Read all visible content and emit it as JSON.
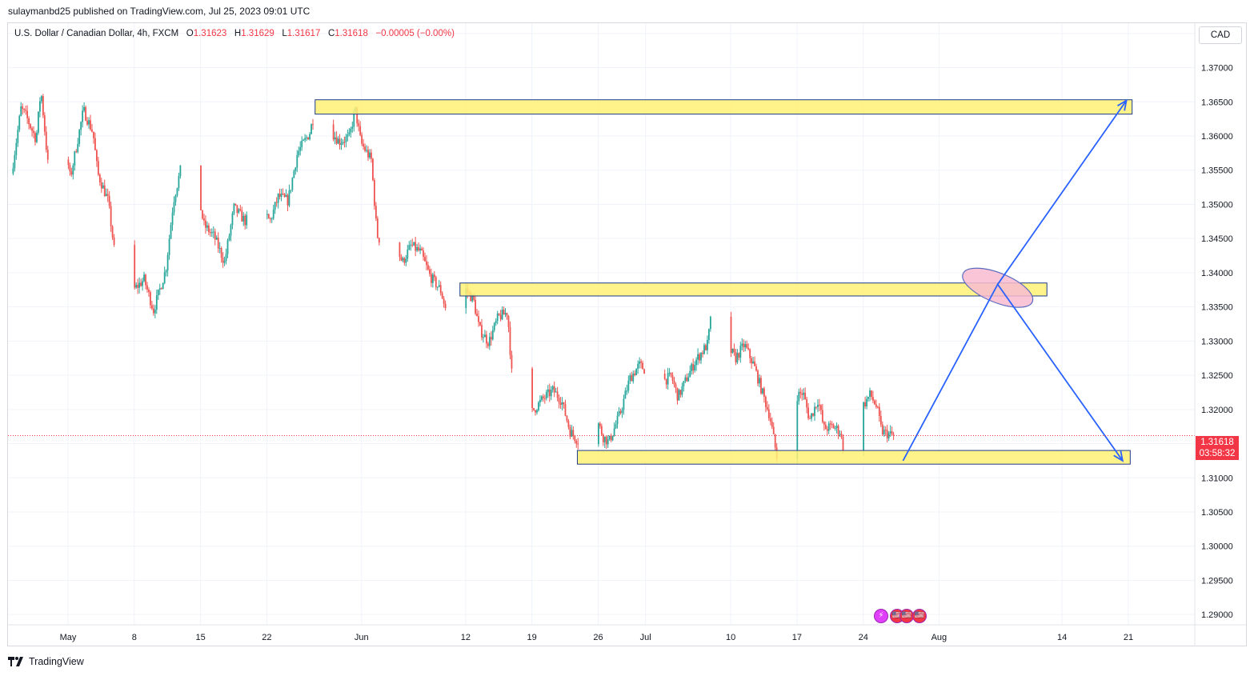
{
  "header": {
    "publisher_line": "sulaymanbd25 published on TradingView.com, Jul 25, 2023 09:01 UTC"
  },
  "legend": {
    "symbol": "U.S. Dollar / Canadian Dollar, 4h, FXCM",
    "open_label": "O",
    "open": "1.31623",
    "high_label": "H",
    "high": "1.31629",
    "low_label": "L",
    "low": "1.31617",
    "close_label": "C",
    "close": "1.31618",
    "change": "−0.00005 (−0.00%)"
  },
  "currency_button": "CAD",
  "price_tag": {
    "price": "1.31618",
    "countdown": "03:58:32"
  },
  "footer": {
    "brand": "TradingView"
  },
  "colors": {
    "up": "#26a69a",
    "down": "#ef5350",
    "zone_fill": "#fff176",
    "zone_border": "#1e3a8a",
    "arrow": "#2962ff",
    "ellipse_fill": "#f8bbd0",
    "last_price_line": "#f23645"
  },
  "chart_data": {
    "type": "candlestick",
    "timeframe": "4h",
    "x_ticks": [
      "May",
      "8",
      "15",
      "22",
      "Jun",
      "12",
      "19",
      "26",
      "Jul",
      "10",
      "17",
      "24",
      "Aug",
      "14",
      "21"
    ],
    "x_tick_days": [
      0,
      7,
      14,
      21,
      31,
      42,
      49,
      56,
      61,
      70,
      77,
      84,
      92,
      105,
      112
    ],
    "y_ticks": [
      "1.37500",
      "1.37000",
      "1.36500",
      "1.36000",
      "1.35500",
      "1.35000",
      "1.34500",
      "1.34000",
      "1.33500",
      "1.33000",
      "1.32500",
      "1.32000",
      "1.31500",
      "1.31000",
      "1.30500",
      "1.30000",
      "1.29500",
      "1.29000"
    ],
    "ylim": [
      1.2885,
      1.3765
    ],
    "last_price": 1.31618,
    "pivots": [
      {
        "d": -5.8,
        "p": 1.3545
      },
      {
        "d": -4.8,
        "p": 1.364
      },
      {
        "d": -4.3,
        "p": 1.363
      },
      {
        "d": -3.2,
        "p": 1.3595
      },
      {
        "d": -2.7,
        "p": 1.3668
      },
      {
        "d": -1.8,
        "p": 1.3535
      },
      {
        "d": -0.6,
        "p": 1.3635
      },
      {
        "d": 0.4,
        "p": 1.3538
      },
      {
        "d": 1.8,
        "p": 1.3638
      },
      {
        "d": 2.8,
        "p": 1.3605
      },
      {
        "d": 3.3,
        "p": 1.3545
      },
      {
        "d": 4.4,
        "p": 1.3505
      },
      {
        "d": 5.3,
        "p": 1.3405
      },
      {
        "d": 6.3,
        "p": 1.332
      },
      {
        "d": 7.1,
        "p": 1.3375
      },
      {
        "d": 8.2,
        "p": 1.339
      },
      {
        "d": 9.2,
        "p": 1.3345
      },
      {
        "d": 10.5,
        "p": 1.3405
      },
      {
        "d": 11.3,
        "p": 1.3505
      },
      {
        "d": 12.3,
        "p": 1.3565
      },
      {
        "d": 13.2,
        "p": 1.3575
      },
      {
        "d": 14.5,
        "p": 1.347
      },
      {
        "d": 15.6,
        "p": 1.3453
      },
      {
        "d": 16.7,
        "p": 1.3415
      },
      {
        "d": 17.7,
        "p": 1.3495
      },
      {
        "d": 18.9,
        "p": 1.3475
      },
      {
        "d": 20.3,
        "p": 1.35
      },
      {
        "d": 21.5,
        "p": 1.3475
      },
      {
        "d": 22.4,
        "p": 1.3512
      },
      {
        "d": 23.4,
        "p": 1.3505
      },
      {
        "d": 24.4,
        "p": 1.3575
      },
      {
        "d": 25.7,
        "p": 1.3605
      },
      {
        "d": 26.5,
        "p": 1.3653
      },
      {
        "d": 27.3,
        "p": 1.3618
      },
      {
        "d": 28.8,
        "p": 1.3592
      },
      {
        "d": 29.9,
        "p": 1.3598
      },
      {
        "d": 30.5,
        "p": 1.364
      },
      {
        "d": 31.1,
        "p": 1.359
      },
      {
        "d": 32.2,
        "p": 1.3565
      },
      {
        "d": 32.8,
        "p": 1.3455
      },
      {
        "d": 33.9,
        "p": 1.343
      },
      {
        "d": 34.9,
        "p": 1.3435
      },
      {
        "d": 35.5,
        "p": 1.3415
      },
      {
        "d": 36.4,
        "p": 1.344
      },
      {
        "d": 37.4,
        "p": 1.343
      },
      {
        "d": 38.4,
        "p": 1.3395
      },
      {
        "d": 39.5,
        "p": 1.3375
      },
      {
        "d": 40.1,
        "p": 1.3345
      },
      {
        "d": 41.3,
        "p": 1.336
      },
      {
        "d": 42.2,
        "p": 1.3375
      },
      {
        "d": 43.0,
        "p": 1.336
      },
      {
        "d": 43.6,
        "p": 1.3318
      },
      {
        "d": 44.6,
        "p": 1.3298
      },
      {
        "d": 45.6,
        "p": 1.3335
      },
      {
        "d": 46.6,
        "p": 1.3342
      },
      {
        "d": 47.1,
        "p": 1.324
      },
      {
        "d": 48.3,
        "p": 1.3225
      },
      {
        "d": 49.1,
        "p": 1.3195
      },
      {
        "d": 50.3,
        "p": 1.3215
      },
      {
        "d": 51.4,
        "p": 1.3228
      },
      {
        "d": 52.3,
        "p": 1.3213
      },
      {
        "d": 53.2,
        "p": 1.3168
      },
      {
        "d": 54.3,
        "p": 1.315
      },
      {
        "d": 54.9,
        "p": 1.3185
      },
      {
        "d": 55.5,
        "p": 1.3205
      },
      {
        "d": 56.7,
        "p": 1.316
      },
      {
        "d": 57.3,
        "p": 1.3152
      },
      {
        "d": 58.5,
        "p": 1.3195
      },
      {
        "d": 59.5,
        "p": 1.3245
      },
      {
        "d": 60.5,
        "p": 1.3265
      },
      {
        "d": 61.4,
        "p": 1.3255
      },
      {
        "d": 62.3,
        "p": 1.3265
      },
      {
        "d": 63.0,
        "p": 1.3242
      },
      {
        "d": 63.9,
        "p": 1.3248
      },
      {
        "d": 64.6,
        "p": 1.3218
      },
      {
        "d": 65.5,
        "p": 1.3245
      },
      {
        "d": 66.4,
        "p": 1.327
      },
      {
        "d": 67.7,
        "p": 1.3295
      },
      {
        "d": 68.4,
        "p": 1.3368
      },
      {
        "d": 69.1,
        "p": 1.3378
      },
      {
        "d": 69.7,
        "p": 1.3295
      },
      {
        "d": 70.7,
        "p": 1.3275
      },
      {
        "d": 71.6,
        "p": 1.3295
      },
      {
        "d": 72.6,
        "p": 1.3265
      },
      {
        "d": 73.5,
        "p": 1.3225
      },
      {
        "d": 74.3,
        "p": 1.319
      },
      {
        "d": 75.1,
        "p": 1.3125
      },
      {
        "d": 75.9,
        "p": 1.3105
      },
      {
        "d": 76.6,
        "p": 1.3215
      },
      {
        "d": 77.8,
        "p": 1.3225
      },
      {
        "d": 78.5,
        "p": 1.3185
      },
      {
        "d": 79.4,
        "p": 1.3215
      },
      {
        "d": 80.0,
        "p": 1.3172
      },
      {
        "d": 81.0,
        "p": 1.3175
      },
      {
        "d": 81.7,
        "p": 1.3168
      },
      {
        "d": 82.3,
        "p": 1.3128
      },
      {
        "d": 83.0,
        "p": 1.3178
      },
      {
        "d": 84.0,
        "p": 1.3202
      },
      {
        "d": 84.9,
        "p": 1.3222
      },
      {
        "d": 85.6,
        "p": 1.3203
      },
      {
        "d": 86.1,
        "p": 1.3168
      },
      {
        "d": 86.8,
        "p": 1.3164
      },
      {
        "d": 87.3,
        "p": 1.3162
      }
    ],
    "zones": [
      {
        "d1": 26.1,
        "d2": 112.4,
        "p1": 1.3632,
        "p2": 1.3653
      },
      {
        "d1": 41.4,
        "d2": 103.4,
        "p1": 1.3366,
        "p2": 1.3385
      },
      {
        "d1": 53.8,
        "d2": 112.2,
        "p1": 1.312,
        "p2": 1.314
      }
    ],
    "projection": [
      {
        "d": 88.2,
        "p": 1.3125
      },
      {
        "d": 98.2,
        "p": 1.3383
      },
      {
        "d": 111.4,
        "p": 1.3125
      }
    ],
    "projection_up": [
      {
        "d": 98.2,
        "p": 1.3383
      },
      {
        "d": 111.8,
        "p": 1.3652
      }
    ],
    "highlight": {
      "d": 98.2,
      "p": 1.3378,
      "rd": 3.95,
      "rp": 0.00215
    }
  },
  "events": [
    {
      "icon": "⚡",
      "bg": "#e040fb",
      "fg": "#ffffff"
    },
    {
      "icon": "🇺🇸",
      "bg": "#f23645",
      "fg": "#ffffff"
    },
    {
      "icon": "🇺🇸",
      "bg": "#f23645",
      "fg": "#ffffff"
    },
    {
      "icon": "🇺🇸",
      "bg": "#f23645",
      "fg": "#ffffff"
    }
  ]
}
